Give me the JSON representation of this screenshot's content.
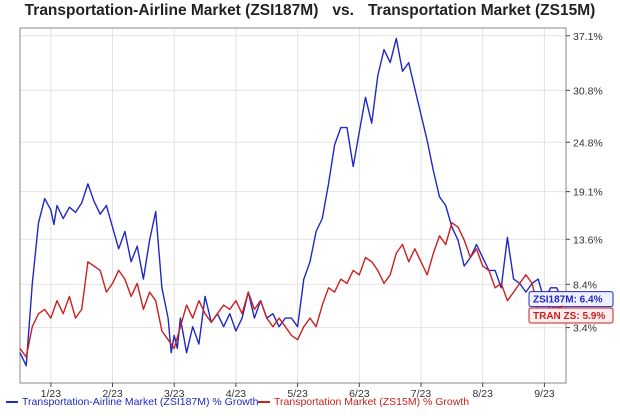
{
  "header": {
    "left_title": "Transportation-Airline Market (ZSI187M)",
    "separator": "vs.",
    "right_title": "Transportation Market (ZS15M)"
  },
  "colors": {
    "airline": "#1f28c8",
    "transport": "#cc1f1f",
    "grid": "#e3e3e3",
    "axis": "#444444"
  },
  "chart_data": {
    "type": "line",
    "title": "Transportation-Airline Market (ZSI187M) vs. Transportation Market (ZS15M)",
    "xlabel": "",
    "ylabel": "% Growth",
    "x_range": [
      0,
      8.85
    ],
    "ylim": [
      -3.0,
      38.0
    ],
    "x_tick_labels": [
      "1/23",
      "2/23",
      "3/23",
      "4/23",
      "5/23",
      "6/23",
      "7/23",
      "8/23",
      "9/23"
    ],
    "x_tick_positions": [
      0.5,
      1.5,
      2.5,
      3.5,
      4.5,
      5.5,
      6.5,
      7.5,
      8.5
    ],
    "y_ticks": [
      3.4,
      8.4,
      13.6,
      19.1,
      24.8,
      30.8,
      37.1
    ],
    "y_tick_labels": [
      "3.4%",
      "8.4%",
      "13.6%",
      "19.1%",
      "24.8%",
      "30.8%",
      "37.1%"
    ],
    "grid": true,
    "legend_position": "bottom-left",
    "series": [
      {
        "name": "Transportation-Airline Market (ZSI187M) % Growth",
        "end_label": "ZSI187M: 6.4%",
        "color": "#1f28c8",
        "x": [
          0.0,
          0.1,
          0.2,
          0.3,
          0.4,
          0.5,
          0.55,
          0.6,
          0.7,
          0.8,
          0.9,
          1.0,
          1.1,
          1.2,
          1.3,
          1.4,
          1.5,
          1.6,
          1.7,
          1.8,
          1.9,
          2.0,
          2.1,
          2.2,
          2.3,
          2.4,
          2.45,
          2.5,
          2.55,
          2.6,
          2.7,
          2.8,
          2.9,
          3.0,
          3.1,
          3.2,
          3.3,
          3.4,
          3.5,
          3.6,
          3.7,
          3.8,
          3.9,
          4.0,
          4.1,
          4.2,
          4.3,
          4.4,
          4.5,
          4.6,
          4.7,
          4.8,
          4.9,
          5.0,
          5.1,
          5.2,
          5.3,
          5.4,
          5.5,
          5.6,
          5.7,
          5.8,
          5.9,
          6.0,
          6.1,
          6.2,
          6.3,
          6.4,
          6.5,
          6.6,
          6.7,
          6.8,
          6.9,
          7.0,
          7.1,
          7.2,
          7.3,
          7.4,
          7.5,
          7.6,
          7.7,
          7.8,
          7.9,
          8.0,
          8.1,
          8.2,
          8.3,
          8.4,
          8.5,
          8.6,
          8.7,
          8.8
        ],
        "values": [
          0.5,
          -1.0,
          8.5,
          15.5,
          18.3,
          17.0,
          15.3,
          17.5,
          16.0,
          17.3,
          16.7,
          17.8,
          20.0,
          18.0,
          16.5,
          17.5,
          15.0,
          12.5,
          14.5,
          11.0,
          12.8,
          9.0,
          13.5,
          16.8,
          8.0,
          4.5,
          0.5,
          2.5,
          1.0,
          4.5,
          0.5,
          3.5,
          1.5,
          7.0,
          4.0,
          5.0,
          3.5,
          5.0,
          3.0,
          4.5,
          7.5,
          4.5,
          6.5,
          4.5,
          5.0,
          3.5,
          4.5,
          4.5,
          3.5,
          9.0,
          11.0,
          14.5,
          16.0,
          20.0,
          24.5,
          26.5,
          26.5,
          22.0,
          26.0,
          30.0,
          27.0,
          32.5,
          35.5,
          34.0,
          36.8,
          33.0,
          34.0,
          31.0,
          28.0,
          25.0,
          21.5,
          18.5,
          17.5,
          15.0,
          13.5,
          10.5,
          11.5,
          13.0,
          11.5,
          10.0,
          10.0,
          8.0,
          13.8,
          9.0,
          8.5,
          7.5,
          8.5,
          9.0,
          6.5,
          8.0,
          8.0,
          6.4
        ]
      },
      {
        "name": "Transportation Market (ZS15M) % Growth",
        "end_label": "TRAN ZS: 5.9%",
        "color": "#cc1f1f",
        "x": [
          0.0,
          0.1,
          0.2,
          0.3,
          0.4,
          0.5,
          0.6,
          0.7,
          0.8,
          0.9,
          1.0,
          1.1,
          1.2,
          1.3,
          1.4,
          1.5,
          1.6,
          1.7,
          1.8,
          1.9,
          2.0,
          2.1,
          2.2,
          2.3,
          2.4,
          2.5,
          2.6,
          2.7,
          2.8,
          2.9,
          3.0,
          3.1,
          3.2,
          3.3,
          3.4,
          3.5,
          3.6,
          3.7,
          3.8,
          3.9,
          4.0,
          4.1,
          4.2,
          4.3,
          4.4,
          4.5,
          4.6,
          4.7,
          4.8,
          4.9,
          5.0,
          5.1,
          5.2,
          5.3,
          5.4,
          5.5,
          5.6,
          5.7,
          5.8,
          5.9,
          6.0,
          6.1,
          6.2,
          6.3,
          6.4,
          6.5,
          6.6,
          6.7,
          6.8,
          6.9,
          7.0,
          7.1,
          7.2,
          7.3,
          7.4,
          7.5,
          7.6,
          7.7,
          7.8,
          7.9,
          8.0,
          8.1,
          8.2,
          8.3,
          8.4,
          8.5,
          8.6,
          8.7,
          8.8
        ],
        "values": [
          1.0,
          0.0,
          3.5,
          5.0,
          5.5,
          4.5,
          6.5,
          5.0,
          7.0,
          4.5,
          5.5,
          11.0,
          10.5,
          10.0,
          7.5,
          8.5,
          10.0,
          9.0,
          7.0,
          8.5,
          5.5,
          7.5,
          6.5,
          3.0,
          2.0,
          1.0,
          3.5,
          6.0,
          4.5,
          6.5,
          5.0,
          4.0,
          5.0,
          6.0,
          5.5,
          6.5,
          5.0,
          7.5,
          5.5,
          6.5,
          4.5,
          3.5,
          4.5,
          3.5,
          2.5,
          2.0,
          3.5,
          4.5,
          3.5,
          6.0,
          8.0,
          7.5,
          9.0,
          8.5,
          10.0,
          9.5,
          11.5,
          11.0,
          10.0,
          8.5,
          9.5,
          12.0,
          13.0,
          11.0,
          12.5,
          11.0,
          9.5,
          12.0,
          14.0,
          13.0,
          15.5,
          15.0,
          13.5,
          11.5,
          12.5,
          10.5,
          10.0,
          8.0,
          8.5,
          6.5,
          7.5,
          8.5,
          9.5,
          8.5,
          5.5,
          5.0,
          6.0,
          5.5,
          5.9
        ]
      }
    ]
  }
}
